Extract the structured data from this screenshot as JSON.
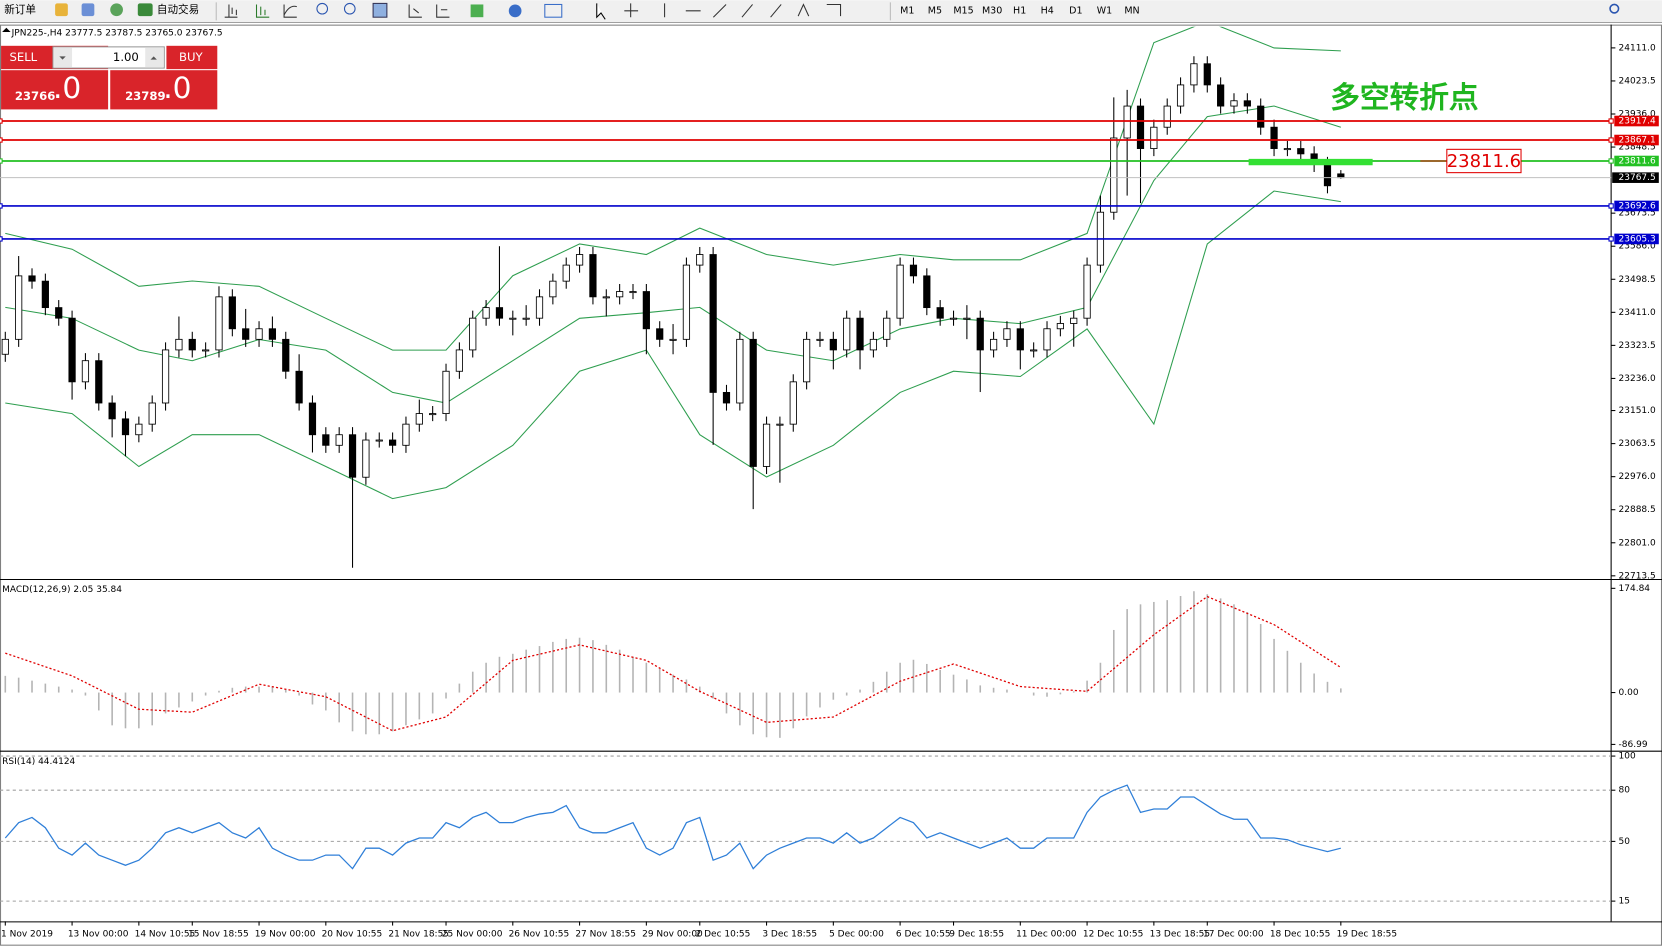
{
  "toolbar": {
    "new_order": "新订单",
    "auto_trading": "自动交易",
    "timeframes": [
      "M1",
      "M5",
      "M15",
      "M30",
      "H1",
      "H4",
      "D1",
      "W1",
      "MN"
    ]
  },
  "trade_panel": {
    "sell": "SELL",
    "buy": "BUY",
    "lot": "1.00",
    "bid_main": "23766",
    "bid_frac": ".0",
    "ask_main": "23789",
    "ask_frac": ".0"
  },
  "chart_data": [
    {
      "type": "candlestick",
      "title": "JPN225-,H4  23777.5 23787.5 23765.0 23767.5",
      "categories": [
        "1 Nov 2019",
        null,
        null,
        null,
        null,
        "13 Nov 00:00",
        null,
        null,
        null,
        null,
        "14 Nov 10:55",
        null,
        null,
        null,
        "15 Nov 18:55",
        null,
        null,
        null,
        null,
        "19 Nov 00:00",
        null,
        null,
        null,
        null,
        "20 Nov 10:55",
        null,
        null,
        null,
        null,
        "21 Nov 18:55",
        null,
        null,
        null,
        "25 Nov 00:00",
        null,
        null,
        null,
        null,
        "26 Nov 10:55",
        null,
        null,
        null,
        null,
        "27 Nov 18:55",
        null,
        null,
        null,
        null,
        "29 Nov 00:00",
        null,
        null,
        null,
        "2 Dec 10:55",
        null,
        null,
        null,
        null,
        "3 Dec 18:55",
        null,
        null,
        null,
        null,
        "5 Dec 00:00",
        null,
        null,
        null,
        null,
        "6 Dec 10:55",
        null,
        null,
        null,
        "9 Dec 18:55",
        null,
        null,
        null,
        null,
        "11 Dec 00:00",
        null,
        null,
        null,
        null,
        "12 Dec 10:55",
        null,
        null,
        null,
        null,
        "13 Dec 18:55",
        null,
        null,
        null,
        "17 Dec 00:00",
        null,
        null,
        null,
        null,
        "18 Dec 10:55",
        null,
        null,
        null,
        null,
        "19 Dec 18:55"
      ],
      "open": [
        23300,
        23339.5,
        23507.5,
        23493.5,
        23423.5,
        23395.5,
        23227,
        23283,
        23171,
        23129,
        23087,
        23115,
        23171,
        23311.5,
        23339.5,
        23311.5,
        23311.5,
        23452,
        23367.5,
        23339.5,
        23367.5,
        23339.5,
        23255,
        23171,
        23087,
        23059,
        23087,
        22974.5,
        23073,
        23073,
        23059,
        23115,
        23143,
        23143,
        23255,
        23311.5,
        23395.5,
        23423.5,
        23395.5,
        23395.5,
        23395.5,
        23452,
        23493.5,
        23536,
        23564,
        23452,
        23452,
        23466,
        23466,
        23367.5,
        23339.5,
        23339.5,
        23536,
        23564,
        23199,
        23171,
        23339.5,
        23003,
        23115,
        23115,
        23227,
        23339.5,
        23339.5,
        23311.5,
        23395.5,
        23311.5,
        23339.5,
        23395.5,
        23536,
        23507.5,
        23423.5,
        23395.5,
        23395.5,
        23395.5,
        23311.5,
        23339.5,
        23367.5,
        23311.5,
        23311.5,
        23367.5,
        23381.5,
        23395.5,
        23536,
        23676,
        23872.5,
        23957,
        23844.5,
        23901,
        23957,
        24013,
        24069,
        24013,
        23957,
        23971,
        23957,
        23901,
        23844.5,
        23844.5,
        23830.5,
        23802.5,
        23777.5
      ],
      "high": [
        23359.5,
        23560,
        23527.5,
        23513.5,
        23443.5,
        23415.5,
        23303,
        23303,
        23191,
        23149,
        23135,
        23191,
        23331.5,
        23400,
        23359.5,
        23331.5,
        23480,
        23472,
        23420,
        23387.5,
        23400,
        23359.5,
        23300,
        23191,
        23107,
        23107,
        23107,
        23093,
        23093,
        23093,
        23135,
        23180,
        23163,
        23275,
        23331.5,
        23415.5,
        23443.5,
        23586,
        23415.5,
        23430,
        23472,
        23513.5,
        23556,
        23584,
        23584,
        23472,
        23486,
        23486,
        23486,
        23387.5,
        23380,
        23556,
        23584,
        23584,
        23219,
        23359.5,
        23359.5,
        23135,
        23135,
        23247,
        23359.5,
        23359.5,
        23359.5,
        23415.5,
        23415.5,
        23359.5,
        23415.5,
        23556,
        23556,
        23527.5,
        23443.5,
        23415.5,
        23430,
        23415.5,
        23359.5,
        23387.5,
        23387.5,
        23331.5,
        23387.5,
        23401.5,
        23415.5,
        23556,
        23720,
        23980,
        24000,
        23977,
        23921,
        23977,
        24033,
        24089,
        24089,
        24033,
        23991,
        23991,
        23977,
        23921,
        23864.5,
        23864.5,
        23850.5,
        23822.5,
        23787.5
      ],
      "low": [
        23280,
        23319.5,
        23473.5,
        23403.5,
        23375.5,
        23180,
        23207,
        23151,
        23080,
        23030,
        23067,
        23095,
        23151,
        23291.5,
        23291.5,
        23291.5,
        23291.5,
        23347.5,
        23319.5,
        23319.5,
        23319.5,
        23235,
        23151,
        23040,
        23039,
        23039,
        22735,
        22954.5,
        23053,
        23039,
        23039,
        23095,
        23123,
        23123,
        23235,
        23291.5,
        23375.5,
        23375.5,
        23350,
        23375.5,
        23375.5,
        23432,
        23473.5,
        23516,
        23432,
        23400,
        23432,
        23446,
        23300,
        23319.5,
        23300,
        23319.5,
        23516,
        23060,
        23151,
        23151,
        22890,
        22983,
        22960,
        23095,
        23207,
        23319.5,
        23260,
        23291.5,
        23260,
        23291.5,
        23319.5,
        23375.5,
        23487.5,
        23403.5,
        23375.5,
        23375.5,
        23340,
        23200,
        23291.5,
        23319.5,
        23260,
        23291.5,
        23291.5,
        23347.5,
        23320,
        23375.5,
        23516,
        23656,
        23720,
        23700,
        23824.5,
        23881,
        23937,
        23993,
        23993,
        23937,
        23937,
        23937,
        23881,
        23824.5,
        23824.5,
        23810.5,
        23782.5,
        23726,
        23765
      ],
      "close": [
        23339.5,
        23507.5,
        23493.5,
        23423.5,
        23395.5,
        23227,
        23283,
        23171,
        23129,
        23087,
        23115,
        23171,
        23311.5,
        23339.5,
        23311.5,
        23311.5,
        23452,
        23367.5,
        23339.5,
        23367.5,
        23339.5,
        23255,
        23171,
        23087,
        23059,
        23087,
        22974.5,
        23073,
        23073,
        23059,
        23115,
        23143,
        23143,
        23255,
        23311.5,
        23395.5,
        23423.5,
        23395.5,
        23395.5,
        23395.5,
        23452,
        23493.5,
        23536,
        23564,
        23452,
        23452,
        23466,
        23466,
        23367.5,
        23339.5,
        23339.5,
        23536,
        23564,
        23199,
        23171,
        23339.5,
        23003,
        23115,
        23115,
        23227,
        23339.5,
        23339.5,
        23311.5,
        23395.5,
        23311.5,
        23339.5,
        23395.5,
        23536,
        23507.5,
        23423.5,
        23395.5,
        23395.5,
        23395.5,
        23311.5,
        23339.5,
        23367.5,
        23311.5,
        23311.5,
        23367.5,
        23381.5,
        23395.5,
        23536,
        23676,
        23872.5,
        23957,
        23844.5,
        23901,
        23957,
        24013,
        24069,
        24013,
        23957,
        23971,
        23957,
        23901,
        23844.5,
        23844.5,
        23830.5,
        23802.5,
        23746,
        23767.5
      ],
      "up_color": "#ffffff",
      "down_color": "#000000",
      "bands": {
        "color": "#2e9e4f",
        "upper": [
          23620,
          23578,
          23480,
          23494,
          23480,
          23395,
          23311,
          23311,
          23508,
          23592,
          23564,
          23634,
          23564,
          23536,
          23564,
          23550,
          23550,
          23620,
          24125,
          24181,
          24111,
          24103
        ],
        "middle": [
          23424,
          23395,
          23311,
          23283,
          23339,
          23311,
          23199,
          23171,
          23283,
          23395,
          23410,
          23424,
          23311,
          23283,
          23367,
          23395,
          23381,
          23424,
          23760,
          23929,
          23957,
          23901
        ],
        "lower": [
          23171,
          23143,
          23003,
          23087,
          23087,
          23003,
          22918,
          22947,
          23059,
          23255,
          23311,
          23087,
          22975,
          23059,
          23199,
          23255,
          23241,
          23367,
          23115,
          23592,
          23732,
          23704
        ]
      },
      "levels": [
        {
          "value": 23917.4,
          "color": "#e00000"
        },
        {
          "value": 23867.1,
          "color": "#e00000"
        },
        {
          "value": 23811.6,
          "color": "#22c022"
        },
        {
          "value": 23692.6,
          "color": "#0000cc"
        },
        {
          "value": 23605.3,
          "color": "#0000cc"
        }
      ],
      "highlight": {
        "value": 23811.6,
        "color": "#33e033"
      },
      "annotation": {
        "text": "多空转折点",
        "color": "#1fb51f"
      },
      "ylim": [
        22708,
        24167
      ],
      "yticks": [
        {
          "value": 24111,
          "label": "24111.0"
        },
        24023.5,
        {
          "value": 23936,
          "label": "23936.0"
        },
        23848.5,
        23673.5,
        {
          "value": 23586,
          "label": "23586.0"
        },
        23498.5,
        {
          "value": 23411,
          "label": "23411.0"
        },
        23323.5,
        {
          "value": 23236,
          "label": "23236.0"
        },
        {
          "value": 23151,
          "label": "23151.0"
        },
        23063.5,
        {
          "value": 22976,
          "label": "22976.0"
        },
        22888.5,
        {
          "value": 22801,
          "label": "22801.0"
        },
        22713.5
      ]
    },
    {
      "type": "macd",
      "title": "MACD(12,26,9) 2.05 35.84",
      "values": [
        28,
        25,
        20,
        15,
        10,
        5,
        -5,
        -30,
        -55,
        -60,
        -60,
        -55,
        -35,
        -25,
        -15,
        -5,
        3,
        8,
        10,
        10,
        10,
        5,
        -5,
        -20,
        -30,
        -50,
        -65,
        -70,
        -70,
        -65,
        -55,
        -45,
        -35,
        -10,
        15,
        35,
        50,
        60,
        65,
        72,
        78,
        85,
        90,
        92,
        88,
        80,
        72,
        60,
        50,
        40,
        30,
        22,
        10,
        -10,
        -35,
        -55,
        -70,
        -75,
        -76,
        -60,
        -40,
        -25,
        -12,
        -5,
        5,
        18,
        35,
        50,
        55,
        48,
        38,
        30,
        22,
        12,
        8,
        5,
        0,
        -5,
        -7,
        -3,
        2,
        20,
        50,
        105,
        140,
        148,
        152,
        155,
        162,
        170,
        165,
        158,
        148,
        135,
        115,
        90,
        70,
        50,
        32,
        18,
        7
      ],
      "signal": [
        66,
        28,
        -28,
        -33,
        14,
        -7,
        -64,
        -41,
        54,
        80,
        54,
        2,
        -50,
        -41,
        19,
        48,
        10,
        2,
        97,
        161,
        114,
        42
      ],
      "bar_color": "#b4b4b4",
      "signal_color": "#e00000",
      "ylim": [
        -97.5,
        187
      ],
      "yticks": [
        174.84,
        {
          "value": 0,
          "label": "0.00"
        },
        -86.99
      ]
    },
    {
      "type": "line",
      "title": "RSI(14) 44.4124",
      "values": [
        52,
        61,
        64,
        58,
        46,
        42,
        49,
        42,
        39,
        36,
        39,
        46,
        55,
        58,
        55,
        58,
        61,
        55,
        52,
        58,
        46,
        42,
        39,
        39,
        42,
        42,
        34,
        46,
        46,
        42,
        49,
        52,
        52,
        61,
        58,
        64,
        67,
        61,
        61,
        64,
        66,
        67,
        71,
        58,
        55,
        55,
        58,
        61,
        46,
        42,
        46,
        61,
        64,
        39,
        42,
        49,
        34,
        42,
        46,
        49,
        52,
        52,
        49,
        55,
        49,
        52,
        58,
        64,
        61,
        52,
        55,
        52,
        49,
        46,
        49,
        52,
        46,
        46,
        52,
        52,
        52,
        67,
        76,
        80,
        83,
        67,
        69,
        69,
        76,
        76,
        71,
        66,
        63,
        63,
        52,
        52,
        51,
        48,
        46,
        44,
        46
      ],
      "color": "#2f7fd8",
      "ylim": [
        4.4,
        101.3
      ],
      "yticks": [
        100,
        80,
        50,
        15
      ],
      "grid": true
    }
  ]
}
